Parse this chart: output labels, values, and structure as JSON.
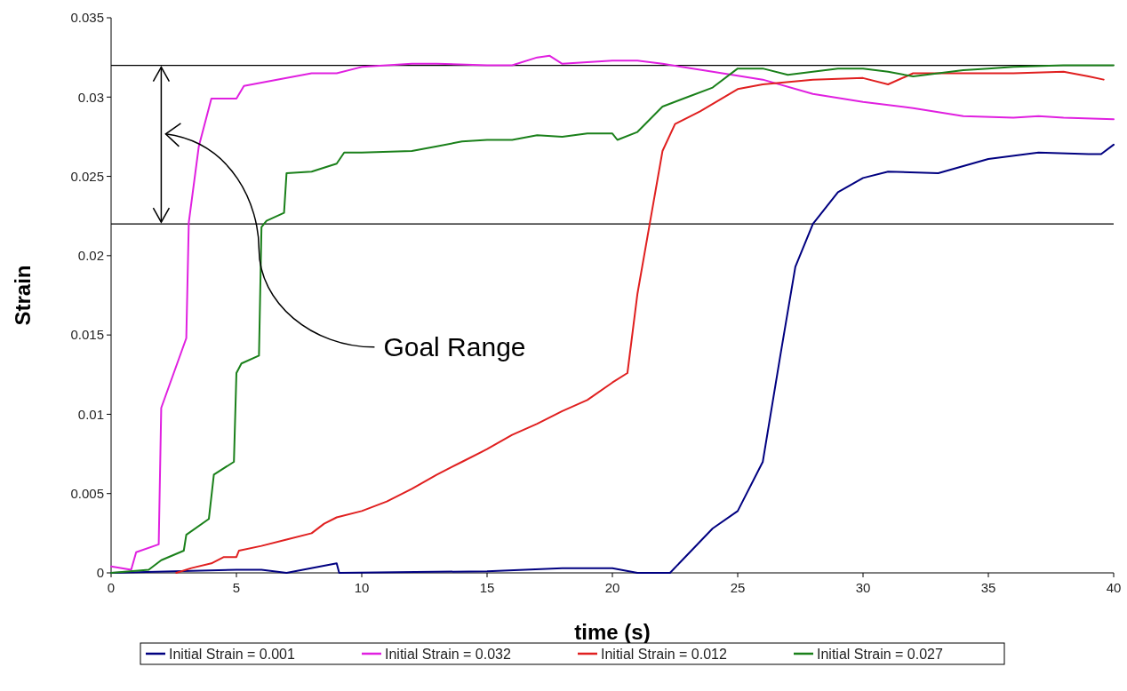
{
  "chart_data": {
    "type": "line",
    "xlabel": "time (s)",
    "ylabel": "Strain",
    "xlim": [
      0,
      40
    ],
    "ylim": [
      0,
      0.035
    ],
    "xticks": [
      0,
      5,
      10,
      15,
      20,
      25,
      30,
      35,
      40
    ],
    "yticks": [
      {
        "value": 0,
        "label": "0"
      },
      {
        "value": 0.005,
        "label": "0.005"
      },
      {
        "value": 0.01,
        "label": "0.01"
      },
      {
        "value": 0.015,
        "label": "0.015"
      },
      {
        "value": 0.02,
        "label": "0.02"
      },
      {
        "value": 0.025,
        "label": "0.025"
      },
      {
        "value": 0.03,
        "label": "0.03"
      },
      {
        "value": 0.035,
        "label": "0.035"
      }
    ],
    "grid": false,
    "legend": "bottom",
    "marker": "none",
    "line_style": "solid",
    "ref_lines": [
      {
        "axis": "y",
        "value": 0.032,
        "color": "#000000"
      },
      {
        "axis": "y",
        "value": 0.022,
        "color": "#000000"
      }
    ],
    "annotations": [
      "Goal Range"
    ],
    "series": [
      {
        "name": "Initial Strain = 0.001",
        "color": "#000080",
        "x": [
          0,
          5,
          6,
          7,
          9,
          9.1,
          15,
          18,
          20,
          21,
          22.3,
          24,
          25,
          26,
          26.7,
          27.3,
          28,
          29,
          30,
          31,
          33,
          35,
          37,
          39,
          39.5,
          40
        ],
        "values": [
          0,
          0.0002,
          0.0002,
          0,
          0.0006,
          0,
          0.0001,
          0.0003,
          0.0003,
          0,
          0,
          0.0028,
          0.0039,
          0.007,
          0.0137,
          0.0193,
          0.022,
          0.024,
          0.0249,
          0.0253,
          0.0252,
          0.0261,
          0.0265,
          0.0264,
          0.0264,
          0.027
        ]
      },
      {
        "name": "Initial Strain = 0.032",
        "color": "#e020e0",
        "x": [
          0,
          0.8,
          1,
          1.9,
          2,
          2.5,
          3,
          3.1,
          3.5,
          4,
          5,
          5.3,
          7,
          8,
          9,
          10,
          12,
          13,
          15,
          16,
          17,
          17.5,
          18,
          20,
          21,
          22,
          24,
          26,
          28,
          30,
          32,
          34,
          36,
          37,
          38,
          40
        ],
        "values": [
          0.0004,
          0.0002,
          0.0013,
          0.0018,
          0.0104,
          0.0126,
          0.0148,
          0.0221,
          0.0269,
          0.0299,
          0.0299,
          0.0307,
          0.0312,
          0.0315,
          0.0315,
          0.0319,
          0.0321,
          0.0321,
          0.032,
          0.032,
          0.0325,
          0.0326,
          0.0321,
          0.0323,
          0.0323,
          0.0321,
          0.0316,
          0.0311,
          0.0302,
          0.0297,
          0.0293,
          0.0288,
          0.0287,
          0.0288,
          0.0287,
          0.0286
        ]
      },
      {
        "name": "Initial Strain = 0.012",
        "color": "#e02020",
        "x": [
          2.6,
          3.2,
          4,
          4.5,
          5,
          5.1,
          6,
          7,
          8,
          8.5,
          9,
          10,
          11,
          12,
          13,
          14,
          15,
          16,
          17,
          18,
          19,
          20,
          20.6,
          21,
          21.5,
          22,
          22.5,
          23.5,
          25,
          26,
          28,
          30,
          31,
          32,
          34,
          36,
          38,
          39,
          39.6
        ],
        "values": [
          0,
          0.0003,
          0.0006,
          0.001,
          0.001,
          0.0014,
          0.0017,
          0.0021,
          0.0025,
          0.0031,
          0.0035,
          0.0039,
          0.0045,
          0.0053,
          0.0062,
          0.007,
          0.0078,
          0.0087,
          0.0094,
          0.0102,
          0.0109,
          0.012,
          0.0126,
          0.0176,
          0.0221,
          0.0266,
          0.0283,
          0.0291,
          0.0305,
          0.0308,
          0.0311,
          0.0312,
          0.0308,
          0.0315,
          0.0315,
          0.0315,
          0.0316,
          0.0313,
          0.0311
        ]
      },
      {
        "name": "Initial Strain = 0.027",
        "color": "#1a801a",
        "x": [
          0,
          1.5,
          2,
          2.9,
          3,
          3.9,
          4.1,
          4.9,
          5,
          5.2,
          5.9,
          6,
          6.2,
          6.9,
          7,
          8,
          9,
          9.3,
          10,
          12,
          13,
          14,
          15,
          16,
          17,
          18,
          19,
          20,
          20.2,
          21,
          22,
          23,
          24,
          25,
          26,
          27,
          28,
          29,
          30,
          31,
          32,
          33,
          34,
          35,
          36,
          38,
          40
        ],
        "values": [
          0,
          0.0002,
          0.0008,
          0.0014,
          0.0024,
          0.0034,
          0.0062,
          0.007,
          0.0126,
          0.0132,
          0.0137,
          0.0218,
          0.0222,
          0.0227,
          0.0252,
          0.0253,
          0.0258,
          0.0265,
          0.0265,
          0.0266,
          0.0269,
          0.0272,
          0.0273,
          0.0273,
          0.0276,
          0.0275,
          0.0277,
          0.0277,
          0.0273,
          0.0278,
          0.0294,
          0.03,
          0.0306,
          0.0318,
          0.0318,
          0.0314,
          0.0316,
          0.0318,
          0.0318,
          0.0316,
          0.0313,
          0.0315,
          0.0317,
          0.0318,
          0.0319,
          0.032,
          0.032
        ]
      }
    ]
  }
}
